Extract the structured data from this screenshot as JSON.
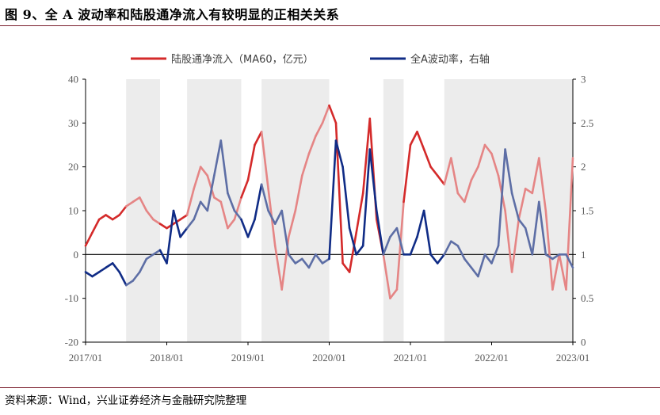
{
  "title": "图 9、全 A 波动率和陆股通净流入有较明显的正相关关系",
  "source": "资料来源：Wind，兴业证券经济与金融研究院整理",
  "chart_data": {
    "type": "line",
    "x_ticks": [
      "2017/01",
      "2018/01",
      "2019/01",
      "2020/01",
      "2021/01",
      "2022/01",
      "2023/01"
    ],
    "y_left": {
      "ylim": [
        -20,
        40
      ],
      "ticks": [
        "-20",
        "-10",
        "0",
        "10",
        "20",
        "30",
        "40"
      ]
    },
    "y_right": {
      "ylim": [
        0,
        3
      ],
      "ticks": [
        "0",
        "0.5",
        "1",
        "1.5",
        "2",
        "2.5",
        "3"
      ]
    },
    "legend_position": "top-center",
    "shaded_periods": [
      [
        "2017/07",
        "2017/12"
      ],
      [
        "2018/04",
        "2018/12"
      ],
      [
        "2019/03",
        "2020/01"
      ],
      [
        "2020/09",
        "2020/12"
      ],
      [
        "2021/06",
        "2023/01"
      ]
    ],
    "series": [
      {
        "name": "陆股通净流入（MA60，亿元）",
        "axis": "left",
        "color_highlight": "#d42a2a",
        "color_faded": "#e58585",
        "x": [
          "2017/01",
          "2017/02",
          "2017/03",
          "2017/04",
          "2017/05",
          "2017/06",
          "2017/07",
          "2017/08",
          "2017/09",
          "2017/10",
          "2017/11",
          "2017/12",
          "2018/01",
          "2018/02",
          "2018/03",
          "2018/04",
          "2018/05",
          "2018/06",
          "2018/07",
          "2018/08",
          "2018/09",
          "2018/10",
          "2018/11",
          "2018/12",
          "2019/01",
          "2019/02",
          "2019/03",
          "2019/04",
          "2019/05",
          "2019/06",
          "2019/07",
          "2019/08",
          "2019/09",
          "2019/10",
          "2019/11",
          "2019/12",
          "2020/01",
          "2020/02",
          "2020/03",
          "2020/04",
          "2020/05",
          "2020/06",
          "2020/07",
          "2020/08",
          "2020/09",
          "2020/10",
          "2020/11",
          "2020/12",
          "2021/01",
          "2021/02",
          "2021/03",
          "2021/04",
          "2021/05",
          "2021/06",
          "2021/07",
          "2021/08",
          "2021/09",
          "2021/10",
          "2021/11",
          "2021/12",
          "2022/01",
          "2022/02",
          "2022/03",
          "2022/04",
          "2022/05",
          "2022/06",
          "2022/07",
          "2022/08",
          "2022/09",
          "2022/10",
          "2022/11",
          "2022/12",
          "2023/01"
        ],
        "values": [
          2,
          5,
          8,
          9,
          8,
          9,
          11,
          12,
          13,
          10,
          8,
          7,
          6,
          7,
          8,
          9,
          15,
          20,
          18,
          13,
          12,
          6,
          8,
          13,
          17,
          25,
          28,
          15,
          2,
          -8,
          4,
          10,
          18,
          23,
          27,
          30,
          34,
          30,
          -2,
          -4,
          5,
          14,
          31,
          8,
          0,
          -10,
          -8,
          12,
          25,
          28,
          24,
          20,
          18,
          16,
          22,
          14,
          12,
          17,
          20,
          25,
          23,
          18,
          10,
          -4,
          8,
          15,
          14,
          22,
          10,
          -8,
          0,
          -8,
          22
        ]
      },
      {
        "name": "全A波动率，右轴",
        "axis": "right",
        "color_highlight": "#102c86",
        "color_faded": "#5d6ea5",
        "x": [
          "2017/01",
          "2017/02",
          "2017/03",
          "2017/04",
          "2017/05",
          "2017/06",
          "2017/07",
          "2017/08",
          "2017/09",
          "2017/10",
          "2017/11",
          "2017/12",
          "2018/01",
          "2018/02",
          "2018/03",
          "2018/04",
          "2018/05",
          "2018/06",
          "2018/07",
          "2018/08",
          "2018/09",
          "2018/10",
          "2018/11",
          "2018/12",
          "2019/01",
          "2019/02",
          "2019/03",
          "2019/04",
          "2019/05",
          "2019/06",
          "2019/07",
          "2019/08",
          "2019/09",
          "2019/10",
          "2019/11",
          "2019/12",
          "2020/01",
          "2020/02",
          "2020/03",
          "2020/04",
          "2020/05",
          "2020/06",
          "2020/07",
          "2020/08",
          "2020/09",
          "2020/10",
          "2020/11",
          "2020/12",
          "2021/01",
          "2021/02",
          "2021/03",
          "2021/04",
          "2021/05",
          "2021/06",
          "2021/07",
          "2021/08",
          "2021/09",
          "2021/10",
          "2021/11",
          "2021/12",
          "2022/01",
          "2022/02",
          "2022/03",
          "2022/04",
          "2022/05",
          "2022/06",
          "2022/07",
          "2022/08",
          "2022/09",
          "2022/10",
          "2022/11",
          "2022/12",
          "2023/01"
        ],
        "values": [
          0.8,
          0.75,
          0.8,
          0.85,
          0.9,
          0.8,
          0.65,
          0.7,
          0.8,
          0.95,
          1.0,
          1.05,
          0.9,
          1.5,
          1.2,
          1.3,
          1.4,
          1.6,
          1.5,
          1.9,
          2.3,
          1.7,
          1.5,
          1.4,
          1.2,
          1.4,
          1.8,
          1.5,
          1.35,
          1.5,
          1.0,
          0.9,
          0.95,
          0.85,
          1.0,
          0.9,
          0.95,
          2.3,
          2.0,
          1.3,
          1.0,
          1.1,
          2.2,
          1.5,
          1.0,
          1.2,
          1.3,
          1.0,
          1.0,
          1.2,
          1.5,
          1.0,
          0.9,
          1.0,
          1.15,
          1.1,
          0.95,
          0.85,
          0.75,
          1.0,
          0.9,
          1.1,
          2.2,
          1.7,
          1.4,
          1.3,
          1.0,
          1.6,
          1.0,
          0.95,
          1.0,
          1.0,
          0.85
        ]
      }
    ]
  }
}
